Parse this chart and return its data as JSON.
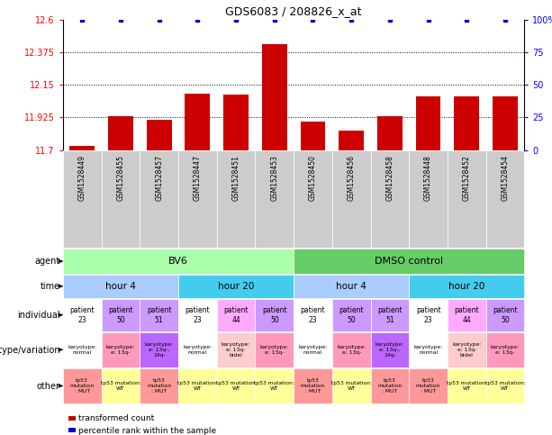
{
  "title": "GDS6083 / 208826_x_at",
  "samples": [
    "GSM1528449",
    "GSM1528455",
    "GSM1528457",
    "GSM1528447",
    "GSM1528451",
    "GSM1528453",
    "GSM1528450",
    "GSM1528456",
    "GSM1528458",
    "GSM1528448",
    "GSM1528452",
    "GSM1528454"
  ],
  "bar_values": [
    11.73,
    11.935,
    11.91,
    12.09,
    12.08,
    12.43,
    11.895,
    11.835,
    11.935,
    12.07,
    12.07,
    12.07
  ],
  "ylim_left": [
    11.7,
    12.6
  ],
  "ylim_right": [
    0,
    100
  ],
  "yticks_left": [
    11.7,
    11.925,
    12.15,
    12.375,
    12.6
  ],
  "yticks_right": [
    0,
    25,
    50,
    75,
    100
  ],
  "bar_color": "#cc0000",
  "dot_color": "#0000cc",
  "agent_spans": [
    {
      "label": "BV6",
      "start": 0,
      "end": 6,
      "color": "#aaffaa"
    },
    {
      "label": "DMSO control",
      "start": 6,
      "end": 12,
      "color": "#66cc66"
    }
  ],
  "time_spans": [
    {
      "label": "hour 4",
      "start": 0,
      "end": 3,
      "color": "#aaccff"
    },
    {
      "label": "hour 20",
      "start": 3,
      "end": 6,
      "color": "#44ccee"
    },
    {
      "label": "hour 4",
      "start": 6,
      "end": 9,
      "color": "#aaccff"
    },
    {
      "label": "hour 20",
      "start": 9,
      "end": 12,
      "color": "#44ccee"
    }
  ],
  "individual_labels": [
    "patient\n23",
    "patient\n50",
    "patient\n51",
    "patient\n23",
    "patient\n44",
    "patient\n50",
    "patient\n23",
    "patient\n50",
    "patient\n51",
    "patient\n23",
    "patient\n44",
    "patient\n50"
  ],
  "individual_colors": [
    "#ffffff",
    "#cc99ff",
    "#cc99ff",
    "#ffffff",
    "#ffaaff",
    "#cc99ff",
    "#ffffff",
    "#cc99ff",
    "#cc99ff",
    "#ffffff",
    "#ffaaff",
    "#cc99ff"
  ],
  "genotype_labels": [
    "karyotype:\nnormal",
    "karyotype:\ne: 13q-",
    "karyotype:\ne: 13q-,\n14q-",
    "karyotype:\nnormal",
    "karyotype:\ne: 13q-\nbidel",
    "karyotype:\ne: 13q-",
    "karyotype:\nnormal",
    "karyotype:\ne: 13q-",
    "karyotype:\ne: 13q-,\n14q-",
    "karyotype:\nnormal",
    "karyotype:\ne: 13q-\nbidel",
    "karyotype:\ne: 13q-"
  ],
  "genotype_colors": [
    "#ffffff",
    "#ff99bb",
    "#bb66ff",
    "#ffffff",
    "#ffcccc",
    "#ff99bb",
    "#ffffff",
    "#ff99bb",
    "#bb66ff",
    "#ffffff",
    "#ffcccc",
    "#ff99bb"
  ],
  "other_labels": [
    "tp53\nmutation\n: MUT",
    "tp53 mutation:\nWT",
    "tp53\nmutation\n: MUT",
    "tp53 mutation:\nWT",
    "tp53 mutation:\nWT",
    "tp53 mutation:\nWT",
    "tp53\nmutation\n: MUT",
    "tp53 mutation:\nWT",
    "tp53\nmutation\n: MUT",
    "tp53\nmutation\n: MUT",
    "tp53 mutation:\nWT",
    "tp53 mutation:\nWT"
  ],
  "other_colors": [
    "#ff9999",
    "#ffff99",
    "#ff9999",
    "#ffff99",
    "#ffff99",
    "#ffff99",
    "#ff9999",
    "#ffff99",
    "#ff9999",
    "#ff9999",
    "#ffff99",
    "#ffff99"
  ],
  "row_labels": [
    "agent",
    "time",
    "individual",
    "genotype/variation",
    "other"
  ],
  "legend_items": [
    {
      "color": "#cc0000",
      "label": "transformed count"
    },
    {
      "color": "#0000cc",
      "label": "percentile rank within the sample"
    }
  ]
}
